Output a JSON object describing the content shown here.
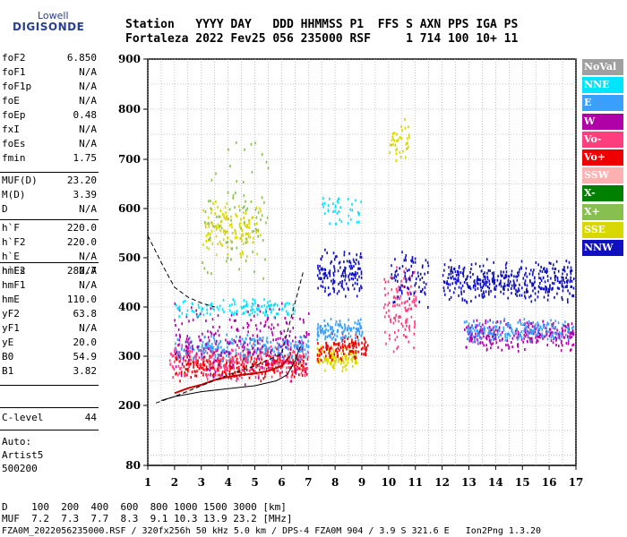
{
  "logo": {
    "line1": "Lowell",
    "line2": "DIGISONDE"
  },
  "header": {
    "line1": "Station   YYYY DAY   DDD HHMMSS P1  FFS S AXN PPS IGA PS",
    "line2": "Fortaleza 2022 Fev25 056 235000 RSF     1 714 100 10+ 11"
  },
  "params_group1": [
    {
      "name": "foF2",
      "value": "6.850"
    },
    {
      "name": "foF1",
      "value": "N/A"
    },
    {
      "name": "foF1p",
      "value": "N/A"
    },
    {
      "name": "foE",
      "value": "N/A"
    },
    {
      "name": "foEp",
      "value": "0.48"
    },
    {
      "name": "fxI",
      "value": "N/A"
    },
    {
      "name": "foEs",
      "value": "N/A"
    },
    {
      "name": "fmin",
      "value": "1.75"
    }
  ],
  "params_group2": [
    {
      "name": "MUF(D)",
      "value": "23.20"
    },
    {
      "name": "M(D)",
      "value": "3.39"
    },
    {
      "name": "D",
      "value": "N/A"
    }
  ],
  "params_group3": [
    {
      "name": "h`F",
      "value": "220.0"
    },
    {
      "name": "h`F2",
      "value": "220.0"
    },
    {
      "name": "h`E",
      "value": "N/A"
    },
    {
      "name": "h`Es",
      "value": "N/A"
    }
  ],
  "params_group4": [
    {
      "name": "hmF2",
      "value": "282.7"
    },
    {
      "name": "hmF1",
      "value": "N/A"
    },
    {
      "name": "hmE",
      "value": "110.0"
    },
    {
      "name": "yF2",
      "value": "63.8"
    },
    {
      "name": "yF1",
      "value": "N/A"
    },
    {
      "name": "yE",
      "value": "20.0"
    },
    {
      "name": "B0",
      "value": "54.9"
    },
    {
      "name": "B1",
      "value": "3.82"
    }
  ],
  "clevel": {
    "name": "C-level",
    "value": "44"
  },
  "auto": {
    "line1": "Auto:",
    "line2": "Artist5",
    "line3": "500200"
  },
  "footer": {
    "d_line": "D    100  200  400  600  800 1000 1500 3000 [km]",
    "muf_line": "MUF  7.2  7.3  7.7  8.3  9.1 10.3 13.9 23.2 [MHz]",
    "file_line": "FZA0M_2022056235000.RSF / 320fx256h 50 kHz 5.0 km / DPS-4 FZA0M 904 / 3.9 S 321.6 E   Ion2Png 1.3.20"
  },
  "legend": [
    {
      "label": "NoVal",
      "color": "#a0a0a0"
    },
    {
      "label": "NNE",
      "color": "#00e5ff"
    },
    {
      "label": "E",
      "color": "#3aa0ff"
    },
    {
      "label": "W",
      "color": "#b000a8"
    },
    {
      "label": "Vo-",
      "color": "#ff3d7f"
    },
    {
      "label": "Vo+",
      "color": "#ee0000"
    },
    {
      "label": "SSW",
      "color": "#ffb0b0"
    },
    {
      "label": "X-",
      "color": "#008000"
    },
    {
      "label": "X+",
      "color": "#88c050"
    },
    {
      "label": "SSE",
      "color": "#d8d800"
    },
    {
      "label": "NNW",
      "color": "#1010c0"
    }
  ],
  "chart_data": {
    "type": "scatter",
    "xlim": [
      1,
      17
    ],
    "ylim": [
      80,
      900
    ],
    "x_ticks": [
      "1",
      "2",
      "3",
      "4",
      "5",
      "6",
      "7",
      "8",
      "9",
      "10",
      "11",
      "12",
      "13",
      "14",
      "15",
      "16",
      "17"
    ],
    "y_ticks": [
      "80",
      "200",
      "300",
      "400",
      "500",
      "600",
      "700",
      "800",
      "900"
    ],
    "y_tick_values": [
      80,
      200,
      300,
      400,
      500,
      600,
      700,
      800,
      900
    ],
    "grid": true,
    "clusters": [
      {
        "color": "#ee0000",
        "x": [
          2.0,
          7.0
        ],
        "y": [
          250,
          320
        ],
        "n": 320
      },
      {
        "color": "#ff3d7f",
        "x": [
          1.8,
          7.0
        ],
        "y": [
          250,
          330
        ],
        "n": 260
      },
      {
        "color": "#3aa0ff",
        "x": [
          2.0,
          7.0
        ],
        "y": [
          290,
          350
        ],
        "n": 260
      },
      {
        "color": "#b000a8",
        "x": [
          1.9,
          7.0
        ],
        "y": [
          240,
          420
        ],
        "n": 240
      },
      {
        "color": "#00e5ff",
        "x": [
          2.0,
          6.5
        ],
        "y": [
          380,
          420
        ],
        "n": 120
      },
      {
        "color": "#d8d800",
        "x": [
          3.0,
          5.2
        ],
        "y": [
          500,
          620
        ],
        "n": 140
      },
      {
        "color": "#88c050",
        "x": [
          3.0,
          5.5
        ],
        "y": [
          430,
          760
        ],
        "n": 80
      },
      {
        "color": "#1010c0",
        "x": [
          7.3,
          9.0
        ],
        "y": [
          420,
          520
        ],
        "n": 150
      },
      {
        "color": "#d8d800",
        "x": [
          7.3,
          8.8
        ],
        "y": [
          270,
          330
        ],
        "n": 120
      },
      {
        "color": "#ee0000",
        "x": [
          7.3,
          9.2
        ],
        "y": [
          290,
          350
        ],
        "n": 120
      },
      {
        "color": "#3aa0ff",
        "x": [
          7.3,
          9.0
        ],
        "y": [
          330,
          380
        ],
        "n": 120
      },
      {
        "color": "#00e5ff",
        "x": [
          7.5,
          9.0
        ],
        "y": [
          560,
          640
        ],
        "n": 40
      },
      {
        "color": "#1010c0",
        "x": [
          12.0,
          16.9
        ],
        "y": [
          410,
          500
        ],
        "n": 420
      },
      {
        "color": "#b000a8",
        "x": [
          12.8,
          16.9
        ],
        "y": [
          310,
          380
        ],
        "n": 260
      },
      {
        "color": "#3aa0ff",
        "x": [
          12.8,
          16.9
        ],
        "y": [
          330,
          380
        ],
        "n": 180
      },
      {
        "color": "#ff3d7f",
        "x": [
          9.8,
          11.0
        ],
        "y": [
          300,
          500
        ],
        "n": 120
      },
      {
        "color": "#d8d800",
        "x": [
          10.0,
          10.8
        ],
        "y": [
          690,
          790
        ],
        "n": 40
      },
      {
        "color": "#1010c0",
        "x": [
          10.0,
          11.5
        ],
        "y": [
          400,
          520
        ],
        "n": 80
      }
    ],
    "traces": [
      {
        "name": "profile-solid",
        "style": "solid",
        "x": [
          1.5,
          2.0,
          3.0,
          4.0,
          5.0,
          5.8,
          6.2,
          6.5,
          6.7
        ],
        "y": [
          210,
          218,
          228,
          234,
          240,
          250,
          262,
          290,
          320
        ]
      },
      {
        "name": "profile-red",
        "style": "solid",
        "x": [
          2.0,
          2.5,
          3.0,
          3.5,
          4.0,
          4.5,
          5.0,
          5.5,
          6.0,
          6.3
        ],
        "y": [
          225,
          235,
          242,
          252,
          258,
          262,
          265,
          270,
          280,
          300
        ]
      },
      {
        "name": "dashed-lower",
        "style": "dashed",
        "x": [
          1.3,
          2.0,
          3.0,
          4.0,
          5.0,
          6.0,
          6.8
        ],
        "y": [
          205,
          218,
          240,
          262,
          280,
          305,
          470
        ]
      },
      {
        "name": "dashed-upper",
        "style": "dashed",
        "x": [
          1.0,
          1.6,
          2.0,
          2.5,
          3.0,
          3.5
        ],
        "y": [
          545,
          480,
          440,
          420,
          408,
          400
        ]
      }
    ]
  }
}
